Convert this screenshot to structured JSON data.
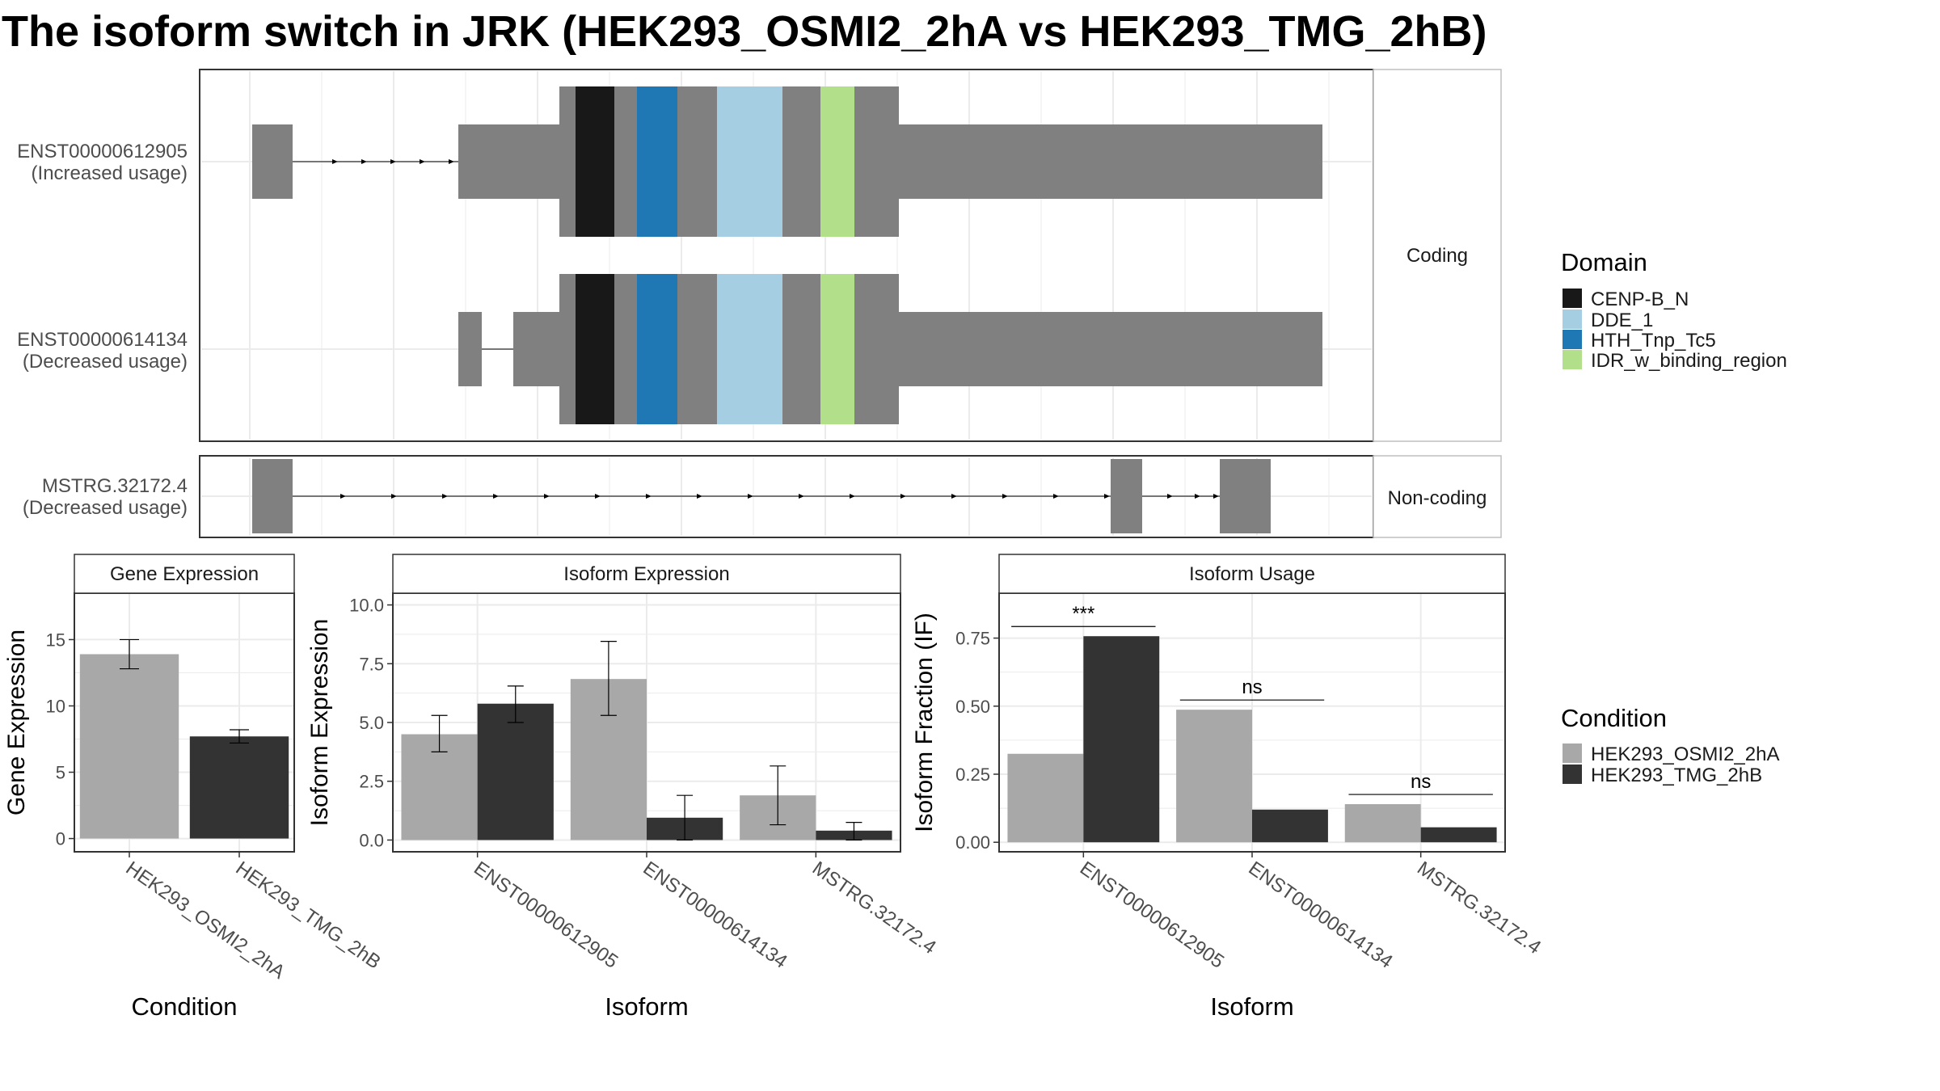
{
  "title": "The isoform switch in JRK (HEK293_OSMI2_2hA vs HEK293_TMG_2hB)",
  "colors": {
    "exon": "#808080",
    "panel_border": "#333333",
    "strip_border": "#bfbfbf",
    "grid": "#ebebeb",
    "cond_a": "#a8a8a8",
    "cond_b": "#333333"
  },
  "domain_legend": {
    "title": "Domain",
    "items": [
      {
        "name": "CENP-B_N",
        "color": "#181818"
      },
      {
        "name": "DDE_1",
        "color": "#a6cee3"
      },
      {
        "name": "HTH_Tnp_Tc5",
        "color": "#1f78b4"
      },
      {
        "name": "IDR_w_binding_region",
        "color": "#b2df8a"
      }
    ]
  },
  "condition_legend": {
    "title": "Condition",
    "items": [
      {
        "name": "HEK293_OSMI2_2hA",
        "color": "#a8a8a8"
      },
      {
        "name": "HEK293_TMG_2hB",
        "color": "#333333"
      }
    ]
  },
  "transcripts": {
    "groups": [
      {
        "strip": "Coding",
        "tracks": [
          {
            "id": "ENST00000612905",
            "note": "(Increased usage)"
          },
          {
            "id": "ENST00000614134",
            "note": "(Decreased usage)"
          }
        ]
      },
      {
        "strip": "Non-coding",
        "tracks": [
          {
            "id": "MSTRG.32172.4",
            "note": "(Decreased usage)"
          }
        ]
      }
    ]
  },
  "chart_data": [
    {
      "type": "bar",
      "title": "Gene Expression",
      "xlabel": "Condition",
      "ylabel": "Gene Expression",
      "categories": [
        "HEK293_OSMI2_2hA",
        "HEK293_TMG_2hB"
      ],
      "values": [
        13.9,
        7.7
      ],
      "errors": [
        [
          12.8,
          15.0
        ],
        [
          7.2,
          8.2
        ]
      ],
      "ylim": [
        -1,
        18.5
      ],
      "yticks": [
        0,
        5,
        10,
        15
      ],
      "ytick_labels": [
        "0",
        "5",
        "10",
        "15"
      ],
      "grid": true
    },
    {
      "type": "bar",
      "title": "Isoform Expression",
      "xlabel": "Isoform",
      "ylabel": "Isoform Expression",
      "categories": [
        "ENST00000612905",
        "ENST00000614134",
        "MSTRG.32172.4"
      ],
      "series": [
        {
          "name": "HEK293_OSMI2_2hA",
          "values": [
            4.5,
            6.85,
            1.9
          ],
          "errors": [
            [
              3.75,
              5.3
            ],
            [
              5.3,
              8.45
            ],
            [
              0.65,
              3.15
            ]
          ]
        },
        {
          "name": "HEK293_TMG_2hB",
          "values": [
            5.8,
            0.95,
            0.4
          ],
          "errors": [
            [
              5.0,
              6.55
            ],
            [
              0.0,
              1.9
            ],
            [
              0.0,
              0.75
            ]
          ]
        }
      ],
      "ylim": [
        -0.5,
        10.5
      ],
      "yticks": [
        0,
        2.5,
        5,
        7.5,
        10
      ],
      "ytick_labels": [
        "0.0",
        "2.5",
        "5.0",
        "7.5",
        "10.0"
      ],
      "grid": true
    },
    {
      "type": "bar",
      "title": "Isoform Usage",
      "xlabel": "Isoform",
      "ylabel": "Isoform Fraction (IF)",
      "categories": [
        "ENST00000612905",
        "ENST00000614134",
        "MSTRG.32172.4"
      ],
      "series": [
        {
          "name": "HEK293_OSMI2_2hA",
          "values": [
            0.325,
            0.487,
            0.14
          ]
        },
        {
          "name": "HEK293_TMG_2hB",
          "values": [
            0.757,
            0.12,
            0.055
          ]
        }
      ],
      "significance": [
        "***",
        "ns",
        "ns"
      ],
      "ylim": [
        -0.035,
        0.915
      ],
      "yticks": [
        0,
        0.25,
        0.5,
        0.75
      ],
      "ytick_labels": [
        "0.00",
        "0.25",
        "0.50",
        "0.75"
      ],
      "grid": true
    }
  ]
}
